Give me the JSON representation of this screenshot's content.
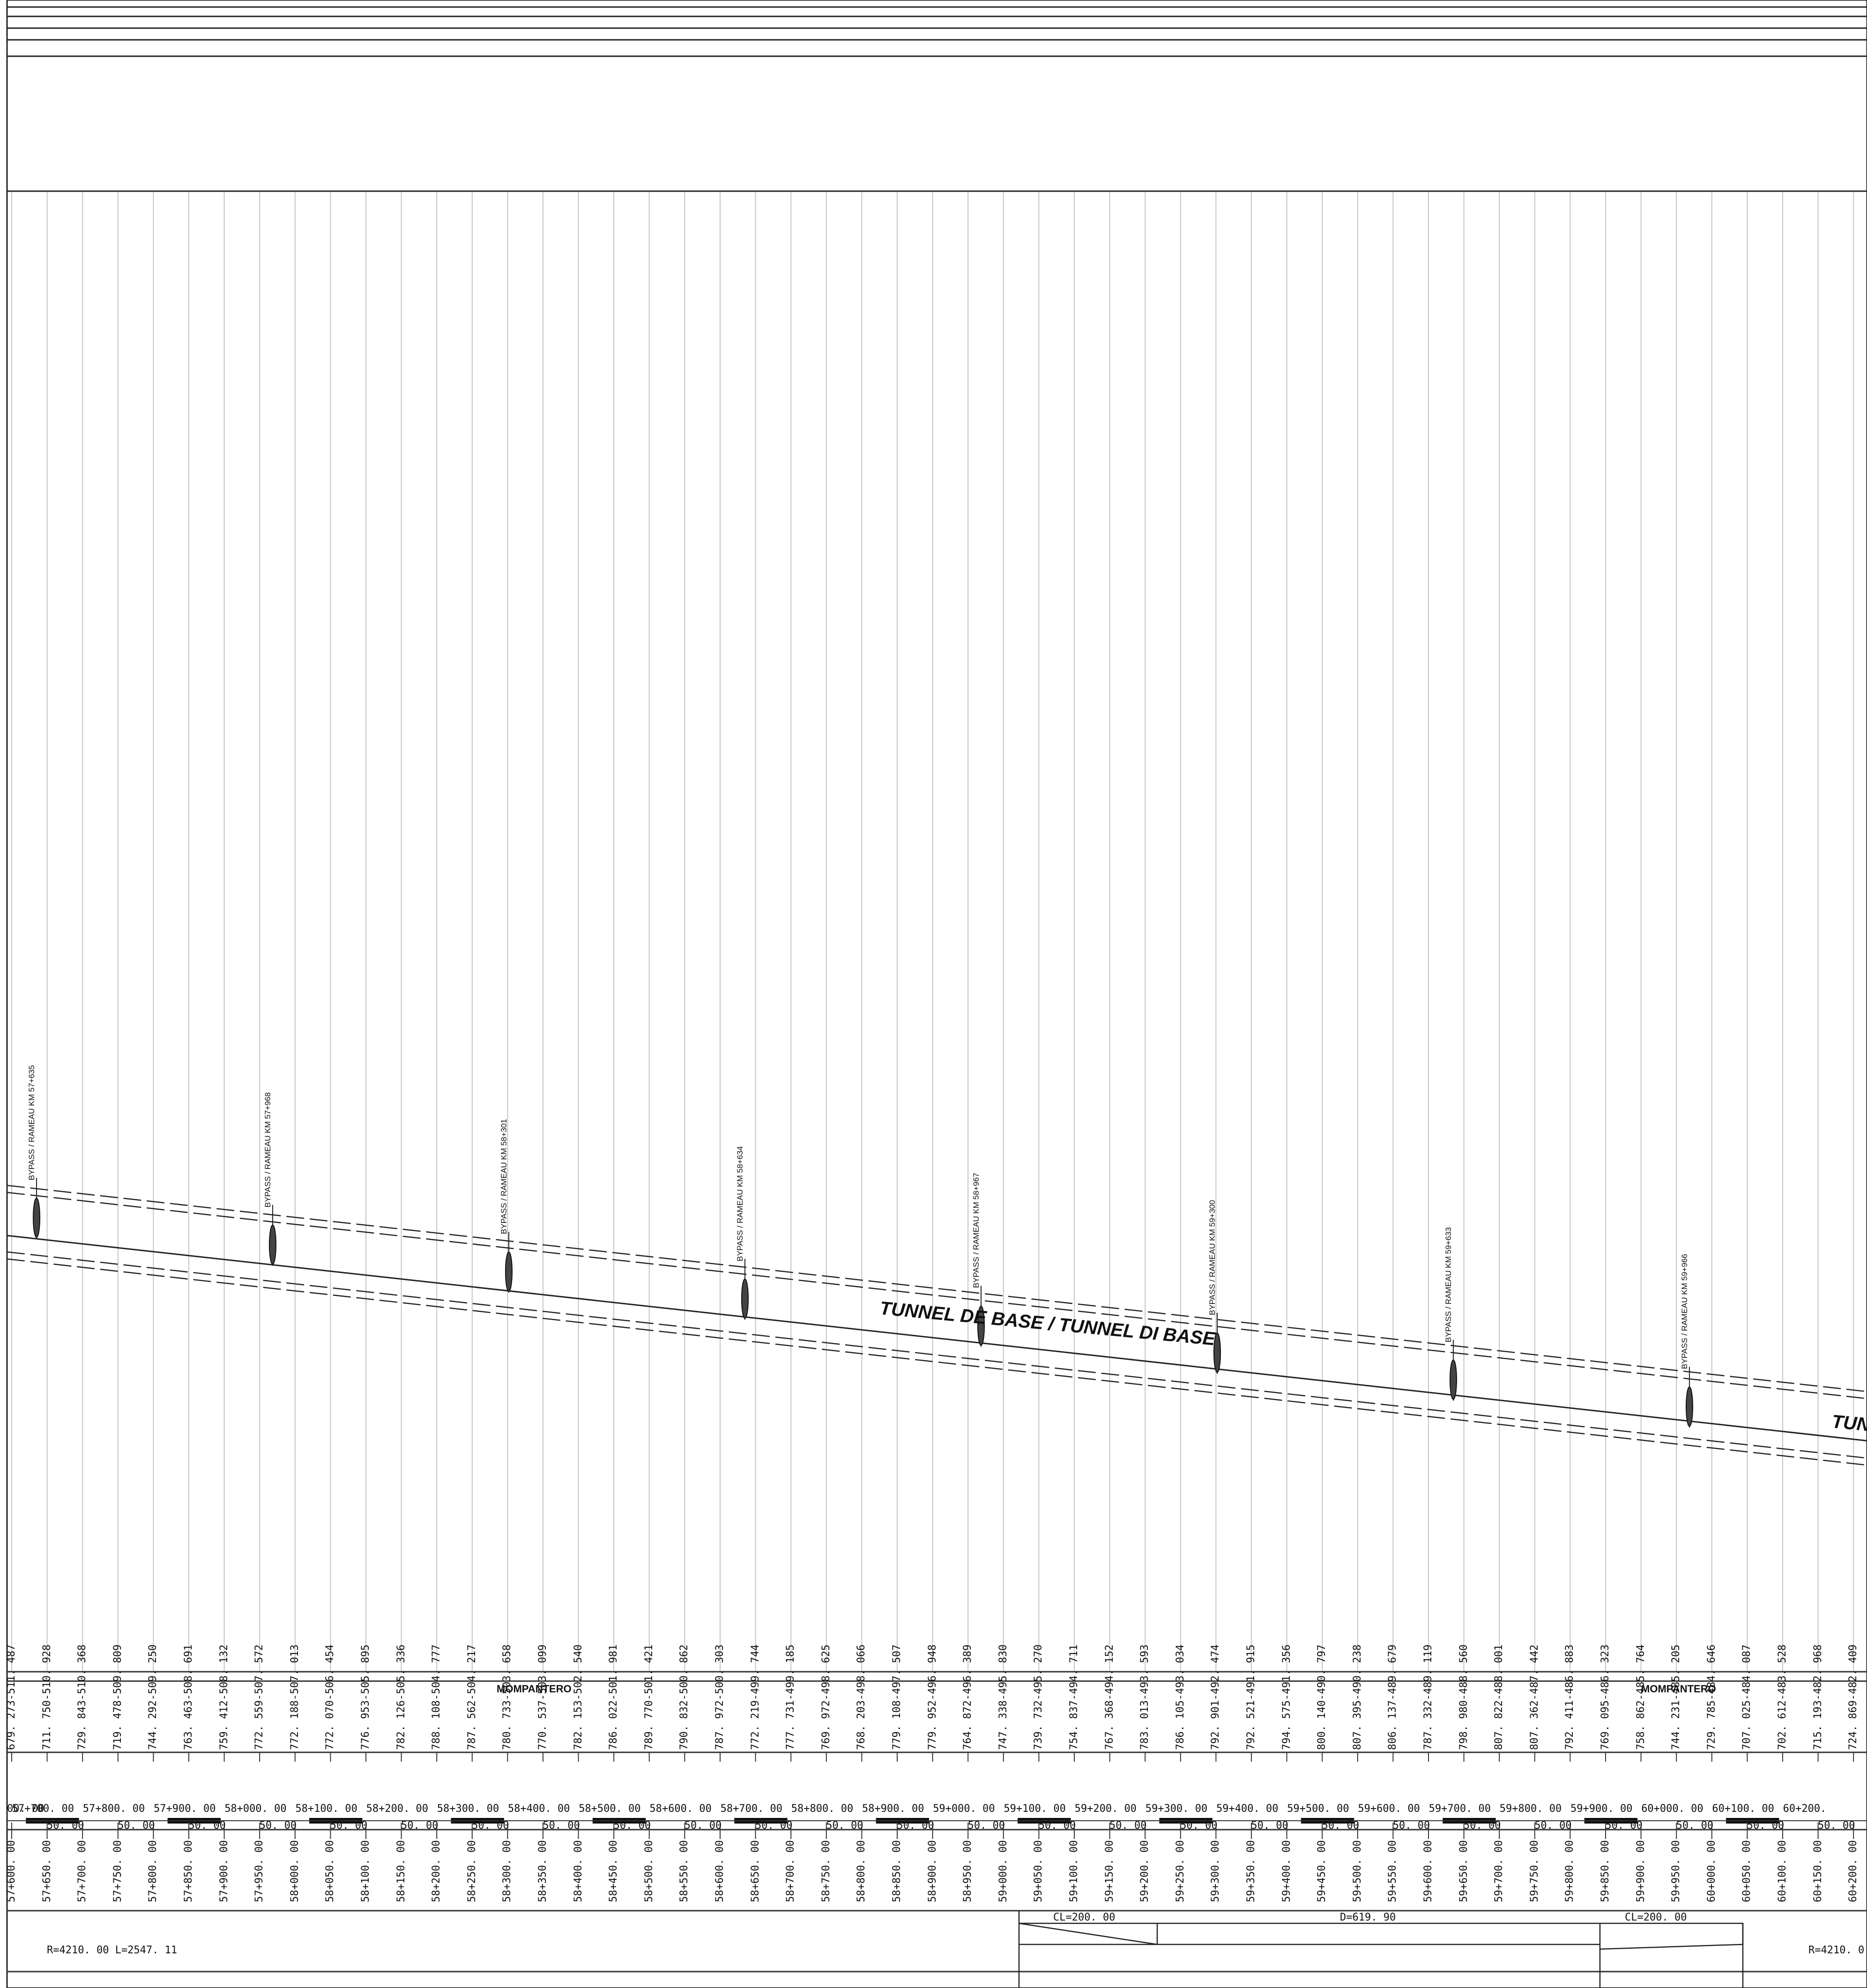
{
  "tunnel_name": "TUNNEL DE BASE / TUNNEL DI BASE",
  "tunnel_name_cut": "TUN",
  "localities": [
    "MOMPANTERO",
    "MOMPANTERO"
  ],
  "bypasses": [
    "BYPASS / RAMEAU KM 57+635",
    "BYPASS / RAMEAU KM 57+968",
    "BYPASS / RAMEAU KM 58+301",
    "BYPASS / RAMEAU KM 58+634",
    "BYPASS / RAMEAU KM 58+967",
    "BYPASS / RAMEAU KM 59+300",
    "BYPASS / RAMEAU KM 59+633",
    "BYPASS / RAMEAU KM 59+966"
  ],
  "elevation_pairs": [
    "679. 273-511. 487",
    "711. 750-510. 928",
    "729. 843-510. 368",
    "719. 478-509. 809",
    "744. 292-509. 250",
    "763. 463-508. 691",
    "759. 412-508. 132",
    "772. 559-507. 572",
    "772. 188-507. 013",
    "772. 070-506. 454",
    "776. 953-505. 895",
    "782. 126-505. 336",
    "788. 108-504. 777",
    "787. 562-504. 217",
    "780. 733-503. 658",
    "770. 537-503. 099",
    "782. 153-502. 540",
    "786. 022-501. 981",
    "789. 770-501. 421",
    "790. 832-500. 862",
    "787. 972-500. 303",
    "772. 219-499. 744",
    "777. 731-499. 185",
    "769. 972-498. 625",
    "768. 203-498. 066",
    "779. 108-497. 507",
    "779. 952-496. 948",
    "764. 872-496. 389",
    "747. 338-495. 830",
    "739. 732-495. 270",
    "754. 837-494. 711",
    "767. 368-494. 152",
    "783. 013-493. 593",
    "786. 105-493. 034",
    "792. 901-492. 474",
    "792. 521-491. 915",
    "794. 575-491. 356",
    "800. 140-490. 797",
    "807. 395-490. 238",
    "806. 137-489. 679",
    "787. 332-489. 119",
    "798. 980-488. 560",
    "807. 822-488. 001",
    "807. 362-487. 442",
    "792. 411-486. 883",
    "769. 095-486. 323",
    "758. 862-485. 764",
    "744. 231-485. 205",
    "729. 785-484. 646",
    "707. 025-484. 087",
    "702. 612-483. 528",
    "715. 193-482. 968",
    "724. 869-482. 409"
  ],
  "stations_axis": [
    "00. 00",
    "57+700. 00",
    "57+800. 00",
    "57+900. 00",
    "58+000. 00",
    "58+100. 00",
    "58+200. 00",
    "58+300. 00",
    "58+400. 00",
    "58+500. 00",
    "58+600. 00",
    "58+700. 00",
    "58+800. 00",
    "58+900. 00",
    "59+000. 00",
    "59+100. 00",
    "59+200. 00",
    "59+300. 00",
    "59+400. 00",
    "59+500. 00",
    "59+600. 00",
    "59+700. 00",
    "59+800. 00",
    "59+900. 00",
    "60+000. 00",
    "60+100. 00",
    "60+200."
  ],
  "partial_distance": "50. 00",
  "progressives": [
    "57+600. 00",
    "57+650. 00",
    "57+700. 00",
    "57+750. 00",
    "57+800. 00",
    "57+850. 00",
    "57+900. 00",
    "57+950. 00",
    "58+000. 00",
    "58+050. 00",
    "58+100. 00",
    "58+150. 00",
    "58+200. 00",
    "58+250. 00",
    "58+300. 00",
    "58+350. 00",
    "58+400. 00",
    "58+450. 00",
    "58+500. 00",
    "58+550. 00",
    "58+600. 00",
    "58+650. 00",
    "58+700. 00",
    "58+750. 00",
    "58+800. 00",
    "58+850. 00",
    "58+900. 00",
    "58+950. 00",
    "59+000. 00",
    "59+050. 00",
    "59+100. 00",
    "59+150. 00",
    "59+200. 00",
    "59+250. 00",
    "59+300. 00",
    "59+350. 00",
    "59+400. 00",
    "59+450. 00",
    "59+500. 00",
    "59+550. 00",
    "59+600. 00",
    "59+650. 00",
    "59+700. 00",
    "59+750. 00",
    "59+800. 00",
    "59+850. 00",
    "59+900. 00",
    "59+950. 00",
    "60+000. 00",
    "60+050. 00",
    "60+100. 00",
    "60+150. 00",
    "60+200. 00"
  ],
  "curvature": {
    "curve_1": "R=4210. 00 L=2547. 11",
    "clothoid_1": "CL=200. 00",
    "straight": "D=619. 90",
    "clothoid_2": "CL=200. 00",
    "curve_2": "R=4210. 0"
  },
  "colors": {
    "ink": "#111111",
    "grid": "#b8b8b8",
    "rule": "#333333"
  }
}
